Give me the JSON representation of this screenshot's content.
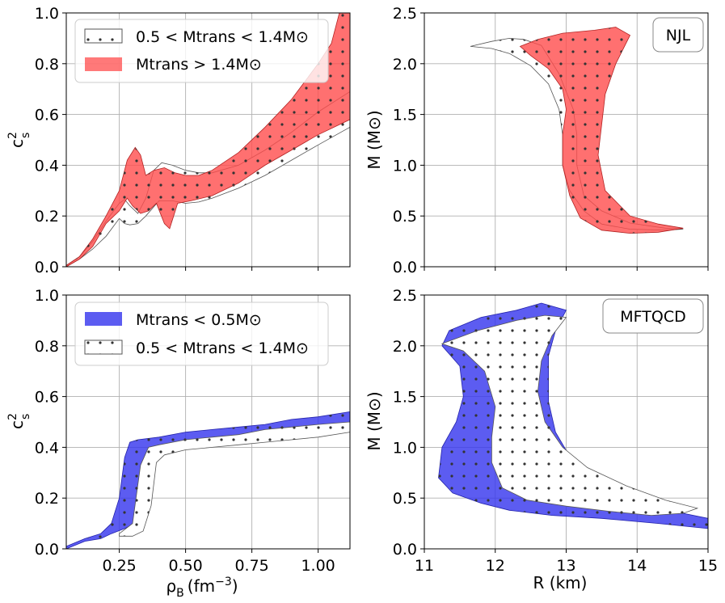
{
  "chart_data": [
    {
      "panel": "top-left",
      "type": "area",
      "xlim": [
        0.05,
        1.12
      ],
      "ylim": [
        0.0,
        1.0
      ],
      "xticks": [],
      "yticks": [
        "0.0",
        "0.2",
        "0.4",
        "0.6",
        "0.8",
        "1.0"
      ],
      "ylabel": "c",
      "ylabel_sup": "2",
      "ylabel_sub": "s",
      "grid": true,
      "legend_placement": "upper-left",
      "series": [
        {
          "name": "0.5 < M_trans < 1.4 M⊙",
          "legend_label": "0.5 < Mtrans < 1.4M⊙",
          "style": "white-dotted",
          "upper": [
            [
              0.05,
              0.005
            ],
            [
              0.1,
              0.04
            ],
            [
              0.15,
              0.1
            ],
            [
              0.2,
              0.18
            ],
            [
              0.25,
              0.25
            ],
            [
              0.27,
              0.265
            ],
            [
              0.29,
              0.24
            ],
            [
              0.32,
              0.21
            ],
            [
              0.35,
              0.27
            ],
            [
              0.38,
              0.38
            ],
            [
              0.41,
              0.41
            ],
            [
              0.45,
              0.4
            ],
            [
              0.5,
              0.38
            ],
            [
              0.55,
              0.37
            ],
            [
              0.6,
              0.37
            ],
            [
              0.7,
              0.4
            ],
            [
              0.8,
              0.46
            ],
            [
              0.9,
              0.53
            ],
            [
              1.0,
              0.61
            ],
            [
              1.12,
              0.69
            ]
          ],
          "lower": [
            [
              0.05,
              0.0
            ],
            [
              0.1,
              0.03
            ],
            [
              0.15,
              0.07
            ],
            [
              0.2,
              0.12
            ],
            [
              0.25,
              0.19
            ],
            [
              0.27,
              0.17
            ],
            [
              0.29,
              0.165
            ],
            [
              0.32,
              0.17
            ],
            [
              0.35,
              0.2
            ],
            [
              0.4,
              0.26
            ],
            [
              0.45,
              0.26
            ],
            [
              0.5,
              0.25
            ],
            [
              0.55,
              0.255
            ],
            [
              0.6,
              0.27
            ],
            [
              0.7,
              0.31
            ],
            [
              0.8,
              0.36
            ],
            [
              0.9,
              0.42
            ],
            [
              1.0,
              0.48
            ],
            [
              1.12,
              0.55
            ]
          ]
        },
        {
          "name": "M_trans > 1.4 M⊙",
          "legend_label": "Mtrans > 1.4M⊙",
          "style": "red-dotted",
          "upper": [
            [
              0.05,
              0.005
            ],
            [
              0.1,
              0.04
            ],
            [
              0.15,
              0.11
            ],
            [
              0.2,
              0.2
            ],
            [
              0.25,
              0.3
            ],
            [
              0.28,
              0.42
            ],
            [
              0.31,
              0.47
            ],
            [
              0.33,
              0.44
            ],
            [
              0.35,
              0.36
            ],
            [
              0.38,
              0.38
            ],
            [
              0.42,
              0.39
            ],
            [
              0.46,
              0.37
            ],
            [
              0.5,
              0.36
            ],
            [
              0.55,
              0.36
            ],
            [
              0.6,
              0.38
            ],
            [
              0.7,
              0.45
            ],
            [
              0.8,
              0.55
            ],
            [
              0.9,
              0.66
            ],
            [
              1.0,
              0.8
            ],
            [
              1.05,
              0.88
            ],
            [
              1.08,
              1.0
            ],
            [
              1.12,
              1.0
            ]
          ],
          "lower": [
            [
              0.05,
              0.0
            ],
            [
              0.1,
              0.03
            ],
            [
              0.15,
              0.08
            ],
            [
              0.2,
              0.17
            ],
            [
              0.25,
              0.22
            ],
            [
              0.28,
              0.27
            ],
            [
              0.3,
              0.24
            ],
            [
              0.33,
              0.21
            ],
            [
              0.36,
              0.22
            ],
            [
              0.39,
              0.25
            ],
            [
              0.42,
              0.17
            ],
            [
              0.44,
              0.15
            ],
            [
              0.47,
              0.25
            ],
            [
              0.52,
              0.26
            ],
            [
              0.6,
              0.28
            ],
            [
              0.7,
              0.33
            ],
            [
              0.8,
              0.4
            ],
            [
              0.9,
              0.46
            ],
            [
              1.0,
              0.52
            ],
            [
              1.12,
              0.58
            ]
          ]
        }
      ]
    },
    {
      "panel": "top-right",
      "type": "area",
      "xlim": [
        11,
        15
      ],
      "ylim": [
        0.0,
        2.5
      ],
      "xticks": [],
      "yticks": [
        "0.0",
        "0.5",
        "1.0",
        "1.5",
        "2.0",
        "2.5"
      ],
      "ylabel": "M (M⊙)",
      "grid": true,
      "annotation": "NJL",
      "series": [
        {
          "name": "0.5 < M_trans < 1.4 M⊙",
          "style": "white-dotted",
          "outline": [
            [
              11.65,
              2.17
            ],
            [
              11.95,
              2.22
            ],
            [
              12.2,
              2.25
            ],
            [
              12.4,
              2.24
            ],
            [
              12.65,
              2.18
            ],
            [
              12.9,
              1.9
            ],
            [
              13.1,
              1.55
            ],
            [
              13.15,
              1.3
            ],
            [
              13.15,
              1.0
            ],
            [
              13.25,
              0.7
            ],
            [
              13.5,
              0.55
            ],
            [
              13.9,
              0.43
            ],
            [
              14.4,
              0.38
            ],
            [
              14.65,
              0.37
            ],
            [
              14.4,
              0.36
            ],
            [
              13.9,
              0.37
            ],
            [
              13.5,
              0.42
            ],
            [
              13.25,
              0.55
            ],
            [
              13.05,
              0.75
            ],
            [
              12.95,
              1.0
            ],
            [
              12.95,
              1.3
            ],
            [
              12.9,
              1.55
            ],
            [
              12.75,
              1.8
            ],
            [
              12.5,
              1.98
            ],
            [
              12.2,
              2.1
            ],
            [
              11.95,
              2.15
            ]
          ]
        },
        {
          "name": "M_trans > 1.4 M⊙",
          "style": "red-dotted",
          "outline": [
            [
              12.35,
              2.17
            ],
            [
              12.6,
              2.24
            ],
            [
              12.95,
              2.3
            ],
            [
              13.4,
              2.33
            ],
            [
              13.7,
              2.36
            ],
            [
              13.9,
              2.28
            ],
            [
              13.7,
              2.0
            ],
            [
              13.55,
              1.7
            ],
            [
              13.5,
              1.4
            ],
            [
              13.45,
              1.1
            ],
            [
              13.55,
              0.75
            ],
            [
              13.9,
              0.5
            ],
            [
              14.3,
              0.42
            ],
            [
              14.65,
              0.38
            ],
            [
              14.3,
              0.34
            ],
            [
              13.9,
              0.33
            ],
            [
              13.5,
              0.36
            ],
            [
              13.2,
              0.48
            ],
            [
              13.05,
              0.7
            ],
            [
              12.95,
              1.0
            ],
            [
              12.95,
              1.3
            ],
            [
              13.0,
              1.55
            ],
            [
              12.95,
              1.75
            ],
            [
              12.75,
              1.95
            ],
            [
              12.5,
              2.08
            ]
          ]
        }
      ]
    },
    {
      "panel": "bottom-left",
      "type": "area",
      "xlim": [
        0.05,
        1.12
      ],
      "ylim": [
        0.0,
        1.0
      ],
      "xticks": [
        "0.25",
        "0.50",
        "0.75",
        "1.00"
      ],
      "yticks": [
        "0.0",
        "0.2",
        "0.4",
        "0.6",
        "0.8",
        "1.0"
      ],
      "xlabel": "ρ",
      "xlabel_sub": "B",
      "xlabel_unit": "(fm",
      "xlabel_unit_sup": "−3",
      "ylabel": "c",
      "ylabel_sup": "2",
      "ylabel_sub": "s",
      "grid": true,
      "legend_placement": "upper-left",
      "series": [
        {
          "name": "M_trans < 0.5 M⊙",
          "legend_label": "Mtrans < 0.5M⊙",
          "style": "blue-dotted",
          "upper": [
            [
              0.05,
              0.01
            ],
            [
              0.12,
              0.04
            ],
            [
              0.18,
              0.06
            ],
            [
              0.22,
              0.1
            ],
            [
              0.25,
              0.2
            ],
            [
              0.27,
              0.36
            ],
            [
              0.29,
              0.42
            ],
            [
              0.32,
              0.43
            ],
            [
              0.4,
              0.44
            ],
            [
              0.5,
              0.46
            ],
            [
              0.6,
              0.47
            ],
            [
              0.7,
              0.48
            ],
            [
              0.8,
              0.49
            ],
            [
              0.9,
              0.51
            ],
            [
              1.0,
              0.52
            ],
            [
              1.12,
              0.54
            ]
          ],
          "lower": [
            [
              0.05,
              0.0
            ],
            [
              0.12,
              0.03
            ],
            [
              0.18,
              0.04
            ],
            [
              0.22,
              0.06
            ],
            [
              0.27,
              0.08
            ],
            [
              0.31,
              0.1
            ],
            [
              0.34,
              0.25
            ],
            [
              0.36,
              0.36
            ],
            [
              0.4,
              0.39
            ],
            [
              0.5,
              0.41
            ],
            [
              0.6,
              0.42
            ],
            [
              0.7,
              0.43
            ],
            [
              0.8,
              0.44
            ],
            [
              0.9,
              0.45
            ],
            [
              1.0,
              0.46
            ],
            [
              1.12,
              0.47
            ]
          ]
        },
        {
          "name": "0.5 < M_trans < 1.4 M⊙",
          "legend_label": "0.5 < Mtrans < 1.4M⊙",
          "style": "white-dotted",
          "upper": [
            [
              0.25,
              0.06
            ],
            [
              0.3,
              0.1
            ],
            [
              0.33,
              0.33
            ],
            [
              0.36,
              0.4
            ],
            [
              0.4,
              0.41
            ],
            [
              0.5,
              0.43
            ],
            [
              0.6,
              0.44
            ],
            [
              0.7,
              0.45
            ],
            [
              0.8,
              0.47
            ],
            [
              0.9,
              0.48
            ],
            [
              1.0,
              0.49
            ],
            [
              1.12,
              0.5
            ]
          ],
          "lower": [
            [
              0.25,
              0.05
            ],
            [
              0.3,
              0.05
            ],
            [
              0.34,
              0.07
            ],
            [
              0.37,
              0.17
            ],
            [
              0.39,
              0.34
            ],
            [
              0.42,
              0.37
            ],
            [
              0.5,
              0.39
            ],
            [
              0.6,
              0.4
            ],
            [
              0.7,
              0.41
            ],
            [
              0.8,
              0.42
            ],
            [
              0.9,
              0.43
            ],
            [
              1.0,
              0.44
            ],
            [
              1.12,
              0.46
            ]
          ]
        }
      ]
    },
    {
      "panel": "bottom-right",
      "type": "area",
      "xlim": [
        11,
        15
      ],
      "ylim": [
        0.0,
        2.5
      ],
      "xticks": [
        "11",
        "12",
        "13",
        "14",
        "15"
      ],
      "yticks": [
        "0.0",
        "0.5",
        "1.0",
        "1.5",
        "2.0",
        "2.5"
      ],
      "xlabel": "R (km)",
      "ylabel": "M (M⊙)",
      "grid": true,
      "annotation": "MFTQCD",
      "series": [
        {
          "name": "M_trans < 0.5 M⊙",
          "style": "blue-dotted",
          "outline": [
            [
              11.35,
              2.15
            ],
            [
              11.8,
              2.28
            ],
            [
              12.3,
              2.35
            ],
            [
              12.65,
              2.42
            ],
            [
              13.0,
              2.35
            ],
            [
              12.85,
              2.15
            ],
            [
              12.75,
              1.9
            ],
            [
              12.75,
              1.45
            ],
            [
              12.85,
              1.15
            ],
            [
              13.1,
              0.85
            ],
            [
              13.6,
              0.6
            ],
            [
              14.3,
              0.4
            ],
            [
              15.0,
              0.3
            ],
            [
              15.0,
              0.2
            ],
            [
              14.3,
              0.25
            ],
            [
              13.5,
              0.3
            ],
            [
              12.8,
              0.33
            ],
            [
              12.2,
              0.38
            ],
            [
              11.8,
              0.45
            ],
            [
              11.4,
              0.55
            ],
            [
              11.2,
              0.7
            ],
            [
              11.25,
              1.0
            ],
            [
              11.45,
              1.25
            ],
            [
              11.55,
              1.5
            ],
            [
              11.5,
              1.8
            ],
            [
              11.25,
              2.0
            ]
          ]
        },
        {
          "name": "0.5 < M_trans < 1.4 M⊙",
          "style": "white-dotted",
          "outline": [
            [
              11.25,
              2.02
            ],
            [
              11.75,
              2.15
            ],
            [
              12.3,
              2.25
            ],
            [
              12.7,
              2.3
            ],
            [
              13.0,
              2.28
            ],
            [
              12.8,
              2.1
            ],
            [
              12.65,
              1.85
            ],
            [
              12.6,
              1.55
            ],
            [
              12.7,
              1.25
            ],
            [
              12.95,
              1.0
            ],
            [
              13.3,
              0.8
            ],
            [
              13.85,
              0.62
            ],
            [
              14.4,
              0.48
            ],
            [
              14.85,
              0.4
            ],
            [
              14.65,
              0.35
            ],
            [
              14.2,
              0.33
            ],
            [
              13.6,
              0.37
            ],
            [
              13.0,
              0.42
            ],
            [
              12.45,
              0.48
            ],
            [
              12.1,
              0.6
            ],
            [
              11.95,
              0.85
            ],
            [
              11.95,
              1.1
            ],
            [
              12.0,
              1.4
            ],
            [
              11.85,
              1.75
            ],
            [
              11.55,
              1.95
            ]
          ]
        }
      ]
    }
  ]
}
